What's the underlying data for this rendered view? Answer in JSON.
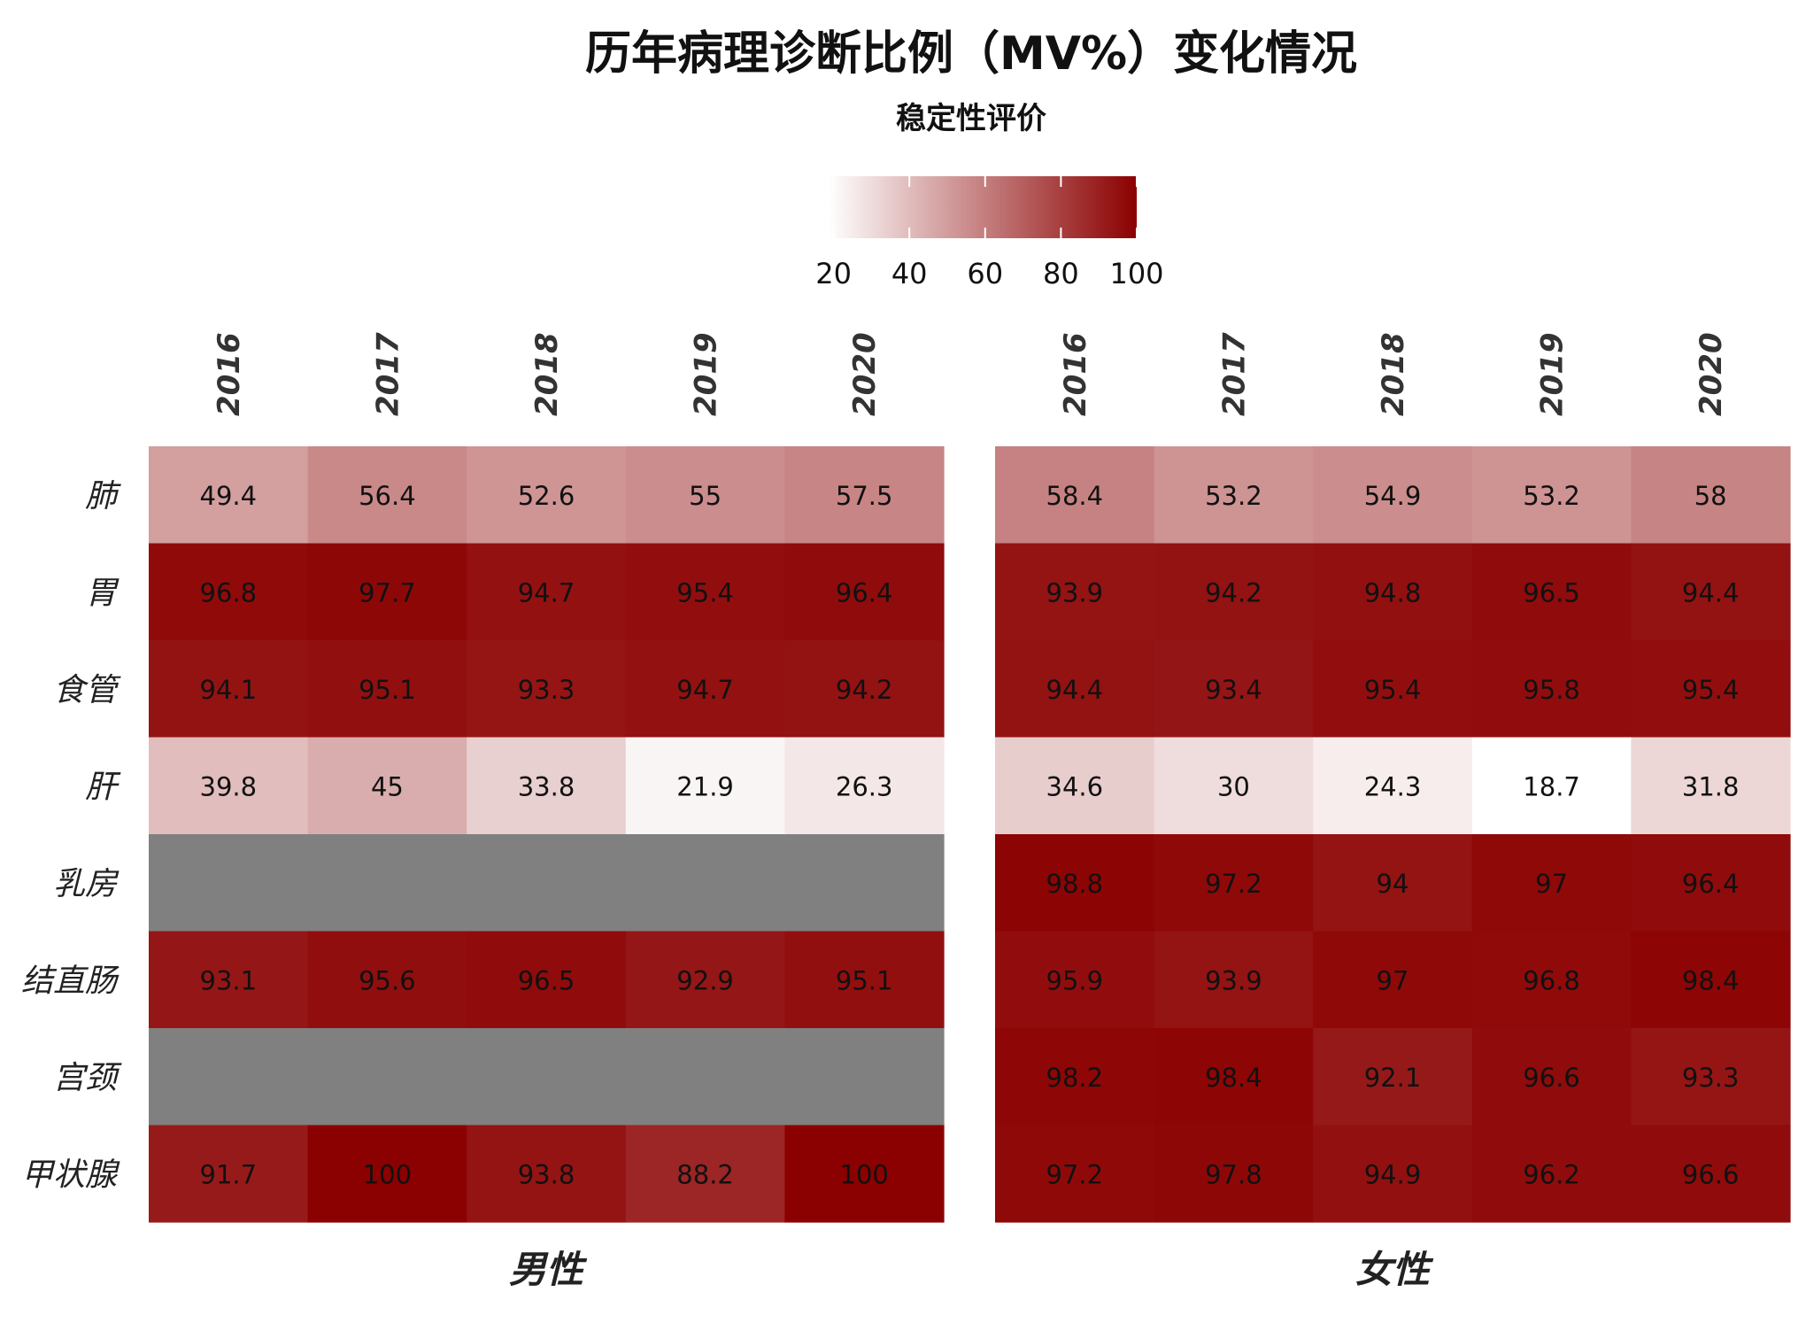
{
  "chart_data": {
    "type": "heatmap",
    "title": "历年病理诊断比例（MV%）变化情况",
    "legend": {
      "title": "稳定性评价",
      "position": "top",
      "range": [
        18.7,
        100
      ],
      "ticks": [
        "20",
        "40",
        "60",
        "80",
        "100"
      ],
      "low_color": "#ffffff",
      "high_color": "#8b0000"
    },
    "missing_color": "#808080",
    "years": [
      "2016",
      "2017",
      "2018",
      "2019",
      "2020"
    ],
    "sites": [
      "肺",
      "胃",
      "食管",
      "肝",
      "乳房",
      "结直肠",
      "宫颈",
      "甲状腺"
    ],
    "panels": [
      {
        "name": "男性",
        "values": [
          [
            49.4,
            56.4,
            52.6,
            55,
            57.5
          ],
          [
            96.8,
            97.7,
            94.7,
            95.4,
            96.4
          ],
          [
            94.1,
            95.1,
            93.3,
            94.7,
            94.2
          ],
          [
            39.8,
            45,
            33.8,
            21.9,
            26.3
          ],
          [
            null,
            null,
            null,
            null,
            null
          ],
          [
            93.1,
            95.6,
            96.5,
            92.9,
            95.1
          ],
          [
            null,
            null,
            null,
            null,
            null
          ],
          [
            91.7,
            100,
            93.8,
            88.2,
            100
          ]
        ]
      },
      {
        "name": "女性",
        "values": [
          [
            58.4,
            53.2,
            54.9,
            53.2,
            58
          ],
          [
            93.9,
            94.2,
            94.8,
            96.5,
            94.4
          ],
          [
            94.4,
            93.4,
            95.4,
            95.8,
            95.4
          ],
          [
            34.6,
            30,
            24.3,
            18.7,
            31.8
          ],
          [
            98.8,
            97.2,
            94,
            97,
            96.4
          ],
          [
            95.9,
            93.9,
            97,
            96.8,
            98.4
          ],
          [
            98.2,
            98.4,
            92.1,
            96.6,
            93.3
          ],
          [
            97.2,
            97.8,
            94.9,
            96.2,
            96.6
          ]
        ]
      }
    ]
  }
}
